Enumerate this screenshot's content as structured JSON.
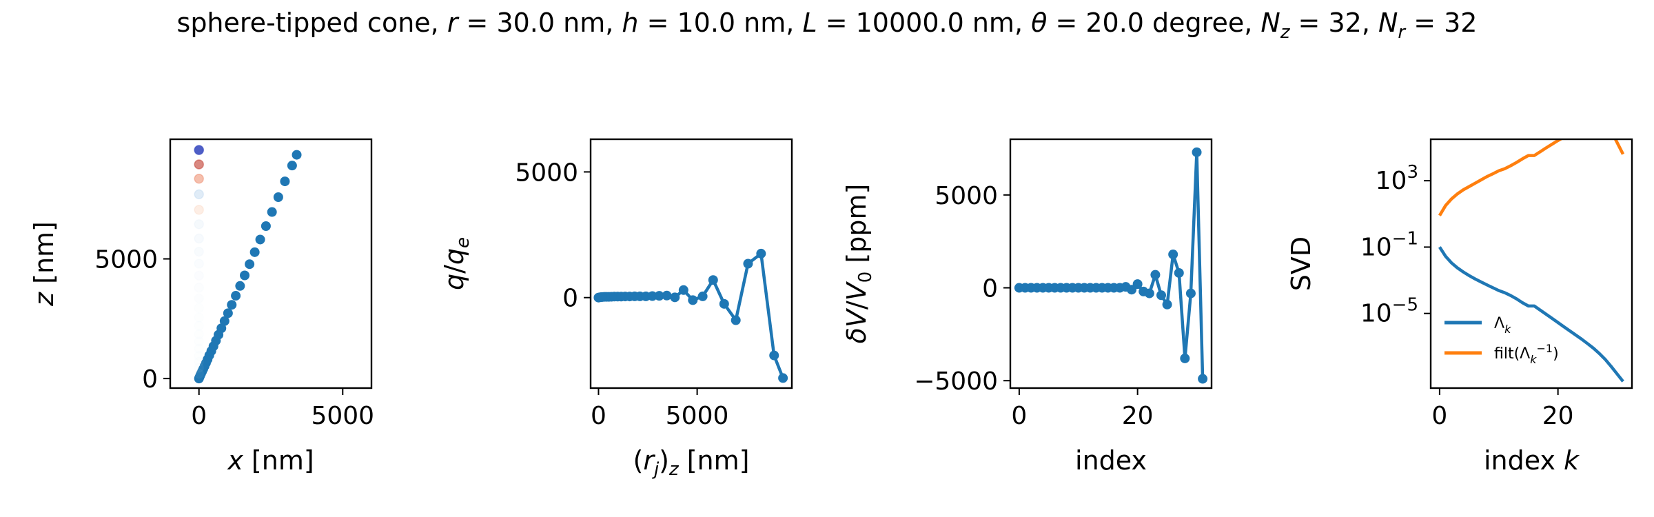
{
  "figure": {
    "title_parts": [
      {
        "t": "sphere-tipped cone, ",
        "i": false
      },
      {
        "t": "r",
        "i": true
      },
      {
        "t": " = 30.0 nm, ",
        "i": false
      },
      {
        "t": "h",
        "i": true
      },
      {
        "t": " = 10.0 nm, ",
        "i": false
      },
      {
        "t": "L",
        "i": true
      },
      {
        "t": " = 10000.0 nm, ",
        "i": false
      },
      {
        "t": "θ",
        "i": true
      },
      {
        "t": " = 20.0 degree, ",
        "i": false
      },
      {
        "t": "N",
        "i": true
      },
      {
        "t": "z",
        "i": true,
        "sub": true
      },
      {
        "t": " = 32, ",
        "i": false
      },
      {
        "t": "N",
        "i": true
      },
      {
        "t": "r",
        "i": true,
        "sub": true
      },
      {
        "t": " = 32",
        "i": false
      }
    ]
  },
  "colors": {
    "blue": "#1f77b4",
    "orange": "#ff7f0e",
    "faded_cmap": [
      "#3b4cc0",
      "#c0392b",
      "#e8704a",
      "#a6c8e8",
      "#f7c6a8",
      "#d6e6f5"
    ]
  },
  "chart_data": [
    {
      "type": "scatter",
      "id": "geometry",
      "xlabel": "x [nm]",
      "ylabel": "z [nm]",
      "xlim": [
        -1000,
        6000
      ],
      "ylim": [
        -400,
        10000
      ],
      "xticks": [
        0,
        5000
      ],
      "xtick_labels": [
        "0",
        "5000"
      ],
      "yticks": [
        0,
        5000
      ],
      "ytick_labels": [
        "0",
        "5000"
      ],
      "series": [
        {
          "style": "points",
          "x": [
            0,
            20,
            45,
            75,
            110,
            150,
            195,
            245,
            300,
            360,
            430,
            505,
            590,
            680,
            780,
            890,
            1010,
            1140,
            1280,
            1430,
            1590,
            1760,
            1940,
            2130,
            2330,
            2540,
            2760,
            2990,
            3240,
            3400
          ],
          "y": [
            0,
            60,
            130,
            210,
            300,
            400,
            520,
            650,
            800,
            970,
            1150,
            1350,
            1580,
            1830,
            2100,
            2400,
            2730,
            3080,
            3460,
            3870,
            4310,
            4780,
            5280,
            5810,
            6370,
            6960,
            7580,
            8240,
            8900,
            9350
          ]
        },
        {
          "style": "faded",
          "x": [
            0,
            0,
            0,
            0,
            0,
            0,
            0,
            0,
            0,
            0,
            0,
            0,
            0,
            0,
            0,
            0,
            0,
            0,
            0,
            0,
            0,
            0
          ],
          "y": [
            9550,
            8950,
            8350,
            7700,
            7050,
            6450,
            5850,
            5300,
            4800,
            4300,
            3800,
            3350,
            2950,
            2550,
            2200,
            1850,
            1550,
            1250,
            950,
            700,
            450,
            200
          ],
          "alpha": [
            0.9,
            0.6,
            0.45,
            0.35,
            0.3,
            0.25,
            0.2,
            0.16,
            0.12,
            0.1,
            0.08,
            0.07,
            0.06,
            0.06,
            0.05,
            0.05,
            0.05,
            0.05,
            0.05,
            0.05,
            0.05,
            0.05
          ]
        }
      ]
    },
    {
      "type": "line",
      "id": "charge",
      "xlabel": "(r_j)_z [nm]",
      "ylabel": "q/q_e",
      "xlim": [
        -400,
        9800
      ],
      "ylim": [
        -3600,
        6300
      ],
      "xticks": [
        0,
        5000
      ],
      "xtick_labels": [
        "0",
        "5000"
      ],
      "yticks": [
        0,
        5000
      ],
      "ytick_labels": [
        "0",
        "5000"
      ],
      "series": [
        {
          "x": [
            0,
            60,
            130,
            210,
            300,
            400,
            520,
            650,
            800,
            970,
            1150,
            1350,
            1580,
            1830,
            2100,
            2400,
            2730,
            3080,
            3460,
            3870,
            4310,
            4780,
            5280,
            5810,
            6370,
            6960,
            7580,
            8240,
            8900,
            9350
          ],
          "y": [
            0,
            10,
            20,
            25,
            30,
            30,
            30,
            35,
            40,
            40,
            40,
            45,
            45,
            50,
            50,
            50,
            60,
            70,
            80,
            10,
            300,
            -100,
            50,
            700,
            -250,
            -900,
            1350,
            1750,
            -2300,
            -3200
          ]
        }
      ]
    },
    {
      "type": "line",
      "id": "voltage",
      "xlabel": "index",
      "ylabel": "δV/V_0 [ppm]",
      "xlim": [
        -1.5,
        32.5
      ],
      "ylim": [
        -5400,
        8000
      ],
      "xticks": [
        0,
        20
      ],
      "xtick_labels": [
        "0",
        "20"
      ],
      "yticks": [
        -5000,
        0,
        5000
      ],
      "ytick_labels": [
        "−5000",
        "0",
        "5000"
      ],
      "series": [
        {
          "x": [
            0,
            1,
            2,
            3,
            4,
            5,
            6,
            7,
            8,
            9,
            10,
            11,
            12,
            13,
            14,
            15,
            16,
            17,
            18,
            19,
            20,
            21,
            22,
            23,
            24,
            25,
            26,
            27,
            28,
            29,
            30,
            31
          ],
          "y": [
            0,
            0,
            0,
            0,
            0,
            0,
            0,
            0,
            0,
            0,
            0,
            0,
            0,
            0,
            0,
            0,
            0,
            0,
            50,
            -100,
            200,
            -200,
            -300,
            700,
            -400,
            -900,
            1800,
            800,
            -3800,
            -300,
            7300,
            -4900
          ]
        }
      ]
    },
    {
      "type": "line",
      "id": "svd",
      "xlabel": "index k",
      "ylabel": "SVD",
      "log_y": true,
      "xlim": [
        -1.5,
        32.5
      ],
      "ylim_log10": [
        -9.5,
        5.5
      ],
      "xticks": [
        0,
        20
      ],
      "xtick_labels": [
        "0",
        "20"
      ],
      "yticks_log10": [
        3,
        -1,
        -5
      ],
      "ytick_base": "10",
      "ytick_exps": [
        "3",
        "−1",
        "−5"
      ],
      "legend": {
        "position": "lower-left",
        "entries": [
          {
            "label_main": "Λ",
            "label_sub": "k",
            "color": "orange_skip"
          },
          {
            "label_main": "filt(Λ",
            "label_sub": "k",
            "label_sup": "−1",
            "label_tail": ")"
          }
        ]
      },
      "series": [
        {
          "name": "Λ_k",
          "color": "#1f77b4",
          "x": [
            0,
            1,
            2,
            3,
            4,
            5,
            6,
            7,
            8,
            9,
            10,
            11,
            12,
            13,
            14,
            15,
            16,
            17,
            18,
            19,
            20,
            21,
            22,
            23,
            24,
            25,
            26,
            27,
            28,
            29,
            30,
            31
          ],
          "y_log10": [
            -1.0,
            -1.55,
            -1.95,
            -2.25,
            -2.5,
            -2.72,
            -2.92,
            -3.1,
            -3.28,
            -3.45,
            -3.62,
            -3.75,
            -3.92,
            -4.12,
            -4.35,
            -4.55,
            -4.55,
            -4.8,
            -5.05,
            -5.3,
            -5.55,
            -5.8,
            -6.05,
            -6.3,
            -6.55,
            -6.82,
            -7.1,
            -7.42,
            -7.78,
            -8.2,
            -8.65,
            -9.1
          ]
        },
        {
          "name": "filt(Λ_k^-1)",
          "color": "#ff7f0e",
          "x": [
            0,
            1,
            2,
            3,
            4,
            5,
            6,
            7,
            8,
            9,
            10,
            11,
            12,
            13,
            14,
            15,
            16,
            17,
            18,
            19,
            20,
            21,
            22,
            23,
            24,
            25,
            26,
            27,
            28,
            29,
            30,
            31
          ],
          "y_log10": [
            0.9,
            1.5,
            1.9,
            2.2,
            2.45,
            2.65,
            2.85,
            3.05,
            3.25,
            3.42,
            3.6,
            3.72,
            3.9,
            4.1,
            4.32,
            4.52,
            4.52,
            4.75,
            4.98,
            5.2,
            5.42,
            5.62,
            5.82,
            6.02,
            6.22,
            6.42,
            6.6,
            6.72,
            6.55,
            6.0,
            5.3,
            4.6
          ]
        }
      ]
    }
  ]
}
